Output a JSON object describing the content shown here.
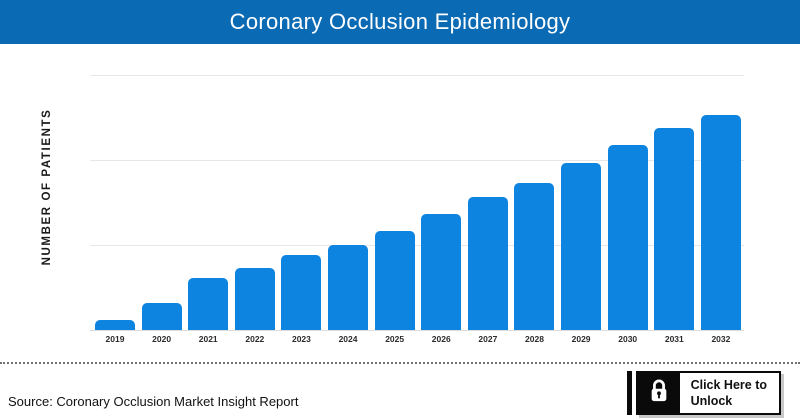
{
  "banner": {
    "title": "Coronary Occlusion Epidemiology"
  },
  "chart_data": {
    "type": "bar",
    "title": "Coronary Occlusion Epidemiology",
    "xlabel": "",
    "ylabel": "NUMBER OF PATIENTS",
    "categories": [
      "2019",
      "2020",
      "2021",
      "2022",
      "2023",
      "2024",
      "2025",
      "2026",
      "2027",
      "2028",
      "2029",
      "2030",
      "2031",
      "2032"
    ],
    "values_relative_pct": [
      4.7,
      12.6,
      24.2,
      28.8,
      34.9,
      39.5,
      46.0,
      54.0,
      61.9,
      68.4,
      77.7,
      86.0,
      94.0,
      100.0
    ],
    "value_axis_tick_labels_visible": false,
    "note": "No numeric y-axis labels are shown in the image; values are bar heights as percent of the tallest bar (2032 = 100).",
    "gridlines": "3 horizontal light-gray lines plus baseline",
    "legend": "none",
    "bar_color": "#0d84e0"
  },
  "footer": {
    "source_text": "Source: Coronary Occlusion Market Insight Report",
    "unlock_button": {
      "label_line1": "Click Here to",
      "label_line2": "Unlock",
      "icon": "lock"
    }
  },
  "colors": {
    "banner_bg": "#0b6ab4",
    "banner_text": "#ffffff",
    "bar": "#0d84e0",
    "gridline": "#e7e7e7",
    "baseline": "#dcdcdc",
    "text_dark": "#1a1a1a",
    "button_border": "#0a0a0a",
    "button_shadow": "#c8c8c8"
  }
}
